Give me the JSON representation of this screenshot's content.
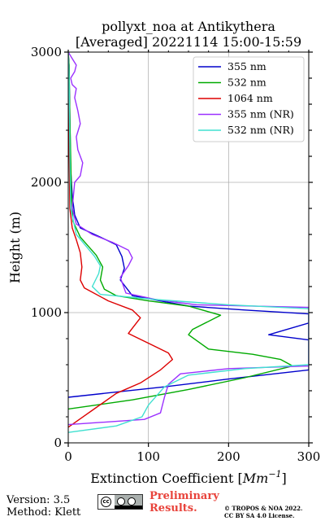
{
  "chart_data": {
    "type": "line",
    "title": [
      "pollyxt_noa at Antikythera",
      "[Averaged] 20221114 15:00-15:59"
    ],
    "xlabel": "Extinction Coefficient [",
    "xlabel_unit": "Mm",
    "xlabel_exp": "−1",
    "xlabel_end": "]",
    "ylabel": "Height (m)",
    "xlim": [
      0,
      300
    ],
    "ylim": [
      0,
      3000
    ],
    "xticks": [
      0,
      100,
      200,
      300
    ],
    "yticks": [
      0,
      1000,
      2000,
      3000
    ],
    "xtick_labels": [
      "0",
      "100",
      "200",
      "300"
    ],
    "ytick_labels": [
      "0",
      "1000",
      "2000",
      "3000"
    ],
    "grid": true,
    "legend_position": "top-right",
    "series": [
      {
        "name": "355 nm",
        "color": "#0000cc",
        "x": [
          0,
          60,
          120,
          200,
          300,
          300,
          250,
          300,
          300,
          220,
          150,
          80,
          65,
          70,
          67,
          60,
          40,
          15,
          8,
          5,
          3,
          2,
          1,
          0
        ],
        "y": [
          350,
          390,
          430,
          490,
          560,
          920,
          830,
          790,
          990,
          1020,
          1050,
          1130,
          1250,
          1340,
          1430,
          1520,
          1580,
          1650,
          1750,
          1900,
          2100,
          2500,
          2900,
          3000
        ]
      },
      {
        "name": "532 nm",
        "color": "#00aa00",
        "x": [
          0,
          80,
          150,
          220,
          280,
          265,
          230,
          175,
          150,
          155,
          190,
          150,
          100,
          60,
          45,
          40,
          43,
          35,
          15,
          6,
          4,
          3,
          2,
          1,
          0
        ],
        "y": [
          260,
          330,
          410,
          500,
          590,
          640,
          680,
          720,
          830,
          870,
          980,
          1050,
          1090,
          1130,
          1180,
          1250,
          1350,
          1440,
          1580,
          1700,
          1900,
          2200,
          2500,
          2900,
          3000
        ]
      },
      {
        "name": "1064 nm",
        "color": "#dd0000",
        "x": [
          0,
          30,
          60,
          90,
          115,
          130,
          125,
          105,
          75,
          80,
          90,
          80,
          50,
          20,
          15,
          17,
          15,
          10,
          5,
          2,
          1,
          0
        ],
        "y": [
          120,
          250,
          380,
          460,
          560,
          640,
          690,
          750,
          840,
          880,
          960,
          1020,
          1090,
          1190,
          1250,
          1350,
          1460,
          1560,
          1650,
          1800,
          2300,
          3000
        ]
      },
      {
        "name": "355 nm (NR)",
        "color": "#9b30ff",
        "x": [
          0,
          95,
          115,
          120,
          125,
          140,
          200,
          300,
          300,
          160,
          110,
          72,
          65,
          75,
          80,
          75,
          55,
          30,
          10,
          5,
          8,
          15,
          18,
          12,
          10,
          15,
          12,
          8,
          10,
          5,
          3,
          8,
          10,
          5,
          2,
          0
        ],
        "y": [
          140,
          180,
          230,
          350,
          450,
          530,
          570,
          590,
          1040,
          1060,
          1100,
          1150,
          1270,
          1360,
          1420,
          1480,
          1540,
          1600,
          1680,
          1800,
          2000,
          2050,
          2150,
          2250,
          2350,
          2450,
          2550,
          2650,
          2720,
          2750,
          2800,
          2850,
          2900,
          2950,
          2980,
          3000
        ]
      },
      {
        "name": "532 nm (NR)",
        "color": "#40e0d0",
        "x": [
          0,
          60,
          92,
          100,
          120,
          150,
          220,
          300,
          300,
          200,
          110,
          40,
          30,
          38,
          40,
          33,
          10,
          3,
          2,
          1,
          0
        ],
        "y": [
          80,
          130,
          200,
          290,
          430,
          520,
          570,
          600,
          1030,
          1060,
          1100,
          1140,
          1200,
          1300,
          1360,
          1430,
          1600,
          1800,
          2200,
          2800,
          3000
        ]
      }
    ]
  },
  "footer": {
    "version": "Version: 3.5",
    "method": "Method: Klett",
    "cc_label": "cc",
    "preliminary_line1": "Preliminary",
    "preliminary_line2": "Results.",
    "copyright_line1": "© TROPOS & NOA 2022.",
    "copyright_line2": "CC BY SA 4.0 License."
  }
}
